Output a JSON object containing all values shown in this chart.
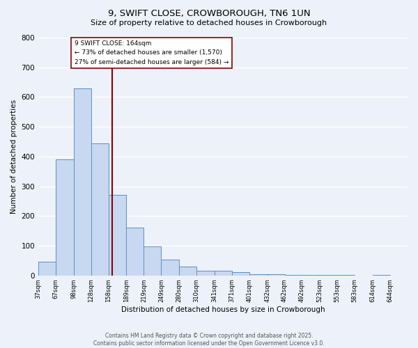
{
  "title1": "9, SWIFT CLOSE, CROWBOROUGH, TN6 1UN",
  "title2": "Size of property relative to detached houses in Crowborough",
  "xlabel": "Distribution of detached houses by size in Crowborough",
  "ylabel": "Number of detached properties",
  "bin_edges": [
    37,
    67,
    98,
    128,
    158,
    189,
    219,
    249,
    280,
    310,
    341,
    371,
    401,
    432,
    462,
    492,
    523,
    553,
    583,
    614,
    644
  ],
  "bar_heights": [
    47,
    390,
    630,
    445,
    270,
    160,
    98,
    52,
    30,
    15,
    15,
    10,
    5,
    5,
    2,
    2,
    1,
    1,
    0,
    1
  ],
  "bar_color": "#c8d8f0",
  "bar_edge_color": "#5b8fc4",
  "property_size": 164,
  "vline_color": "#8b0000",
  "annotation_line1": "9 SWIFT CLOSE: 164sqm",
  "annotation_line2": "← 73% of detached houses are smaller (1,570)",
  "annotation_line3": "27% of semi-detached houses are larger (584) →",
  "annotation_box_edge": "#8b0000",
  "annotation_box_fill": "#ffffff",
  "ylim": [
    0,
    800
  ],
  "yticks": [
    0,
    100,
    200,
    300,
    400,
    500,
    600,
    700,
    800
  ],
  "background_color": "#edf1f9",
  "grid_color": "#ffffff",
  "footer1": "Contains HM Land Registry data © Crown copyright and database right 2025.",
  "footer2": "Contains public sector information licensed under the Open Government Licence v3.0."
}
